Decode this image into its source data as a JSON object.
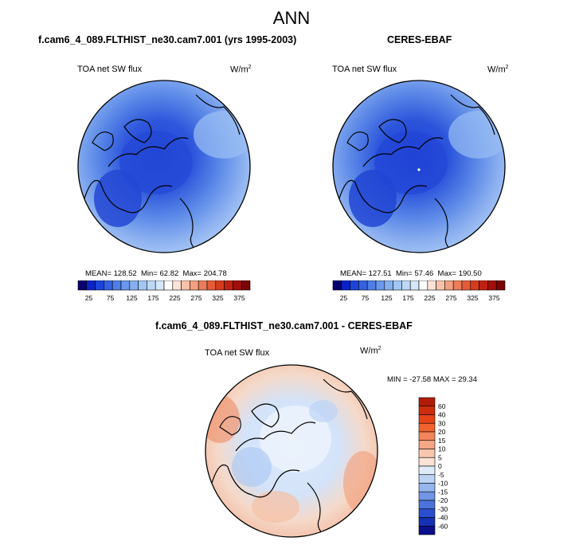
{
  "title": "ANN",
  "panels": [
    {
      "title": "f.cam6_4_089.FLTHIST_ne30.cam7.001 (yrs 1995-2003)",
      "variable": "TOA net SW flux",
      "units": "W/m",
      "units_sup": "2",
      "stats": {
        "mean_label": "MEAN=",
        "mean": "128.52",
        "min_label": "Min=",
        "min": "62.82",
        "max_label": "Max=",
        "max": "204.78"
      }
    },
    {
      "title": "CERES-EBAF",
      "variable": "TOA net SW flux",
      "units": "W/m",
      "units_sup": "2",
      "stats": {
        "mean_label": "MEAN=",
        "mean": "127.51",
        "min_label": "Min=",
        "min": "57.46",
        "max_label": "Max=",
        "max": "190.50"
      }
    },
    {
      "title": "f.cam6_4_089.FLTHIST_ne30.cam7.001 - CERES-EBAF",
      "variable": "TOA net SW flux",
      "units": "W/m",
      "units_sup": "2",
      "stats_line": "MIN = -27.58 MAX =  29.34"
    }
  ],
  "colorbar_abs": {
    "ticks": [
      "25",
      "75",
      "125",
      "175",
      "225",
      "275",
      "325",
      "375"
    ],
    "colors": [
      "#08006e",
      "#0a23c8",
      "#1b44d8",
      "#3560e0",
      "#4f7ee6",
      "#6a98ec",
      "#86b0f0",
      "#a2c6f4",
      "#bdd8f7",
      "#d6e7fa",
      "#ffffff",
      "#fde3d6",
      "#f8c2aa",
      "#f3a081",
      "#ec7d5a",
      "#e35b38",
      "#d63b1f",
      "#c02212",
      "#a10f0a",
      "#7b0404"
    ]
  },
  "colorbar_diff": {
    "labels": [
      "60",
      "40",
      "30",
      "20",
      "15",
      "10",
      "5",
      "0",
      "-5",
      "-10",
      "-15",
      "-20",
      "-30",
      "-40",
      "-60"
    ],
    "colors": [
      "#b01d04",
      "#cc2d0c",
      "#e54416",
      "#f0632f",
      "#f3855a",
      "#f5a784",
      "#f8c7ad",
      "#fbe3d5",
      "#ddebfa",
      "#bcd3f5",
      "#97b6ee",
      "#7296e6",
      "#4c73dc",
      "#2a4ecd",
      "#1530b3",
      "#0a0f8a"
    ]
  },
  "chart_data": [
    {
      "type": "heatmap",
      "title": "f.cam6_4_089.FLTHIST_ne30.cam7.001 (yrs 1995-2003)",
      "variable": "TOA net SW flux",
      "units": "W/m2",
      "projection": "north polar stereographic",
      "colorbar_ticks": [
        25,
        75,
        125,
        175,
        225,
        275,
        325,
        375
      ],
      "mean": 128.52,
      "min": 62.82,
      "max": 204.78
    },
    {
      "type": "heatmap",
      "title": "CERES-EBAF",
      "variable": "TOA net SW flux",
      "units": "W/m2",
      "projection": "north polar stereographic",
      "colorbar_ticks": [
        25,
        75,
        125,
        175,
        225,
        275,
        325,
        375
      ],
      "mean": 127.51,
      "min": 57.46,
      "max": 190.5
    },
    {
      "type": "heatmap",
      "title": "f.cam6_4_089.FLTHIST_ne30.cam7.001 - CERES-EBAF",
      "variable": "TOA net SW flux",
      "units": "W/m2",
      "projection": "north polar stereographic",
      "colorbar_levels": [
        -60,
        -40,
        -30,
        -20,
        -15,
        -10,
        -5,
        0,
        5,
        10,
        15,
        20,
        30,
        40,
        60
      ],
      "min": -27.58,
      "max": 29.34
    }
  ]
}
